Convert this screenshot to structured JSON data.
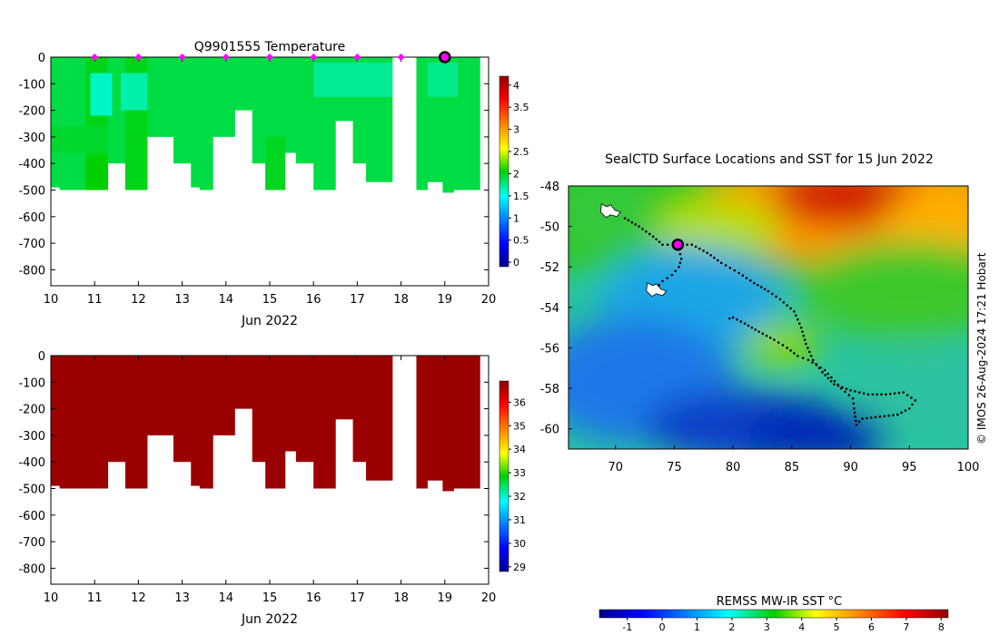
{
  "chart_data": [
    {
      "type": "heatmap",
      "title": "Q9901555  Temperature",
      "xlabel": "Jun 2022",
      "ylabel": "",
      "xlim": [
        10,
        20
      ],
      "ylim": [
        -860,
        0
      ],
      "xticks": [
        10,
        11,
        12,
        13,
        14,
        15,
        16,
        17,
        18,
        19,
        20
      ],
      "yticks": [
        0,
        -100,
        -200,
        -300,
        -400,
        -500,
        -600,
        -700,
        -800
      ],
      "colorbar": {
        "min": -0.1,
        "max": 4.2,
        "ticks": [
          0,
          0.5,
          1,
          1.5,
          2,
          2.5,
          3,
          3.5,
          4
        ]
      },
      "cast_days": [
        11,
        12,
        13,
        14,
        15,
        16,
        17,
        18
      ],
      "highlight_day": 19,
      "profiles": [
        {
          "x0": 10.0,
          "x1": 10.2,
          "bottom": -490,
          "t": 1.9
        },
        {
          "x0": 10.2,
          "x1": 10.8,
          "bottom": -500,
          "t": 1.9
        },
        {
          "x0": 10.8,
          "x1": 11.3,
          "bottom": -500,
          "t": 2.0
        },
        {
          "x0": 11.3,
          "x1": 11.7,
          "bottom": -400,
          "t": 1.9
        },
        {
          "x0": 11.7,
          "x1": 12.2,
          "bottom": -500,
          "t": 2.0
        },
        {
          "x0": 12.2,
          "x1": 12.8,
          "bottom": -300,
          "t": 1.9
        },
        {
          "x0": 12.8,
          "x1": 13.2,
          "bottom": -400,
          "t": 1.9
        },
        {
          "x0": 13.2,
          "x1": 13.4,
          "bottom": -490,
          "t": 1.9
        },
        {
          "x0": 13.4,
          "x1": 13.7,
          "bottom": -500,
          "t": 1.9
        },
        {
          "x0": 13.7,
          "x1": 14.2,
          "bottom": -300,
          "t": 1.9
        },
        {
          "x0": 14.2,
          "x1": 14.6,
          "bottom": -200,
          "t": 1.9
        },
        {
          "x0": 14.6,
          "x1": 14.9,
          "bottom": -400,
          "t": 1.9
        },
        {
          "x0": 14.9,
          "x1": 15.35,
          "bottom": -500,
          "t": 1.9
        },
        {
          "x0": 15.35,
          "x1": 15.6,
          "bottom": -360,
          "t": 1.9
        },
        {
          "x0": 15.6,
          "x1": 16.0,
          "bottom": -400,
          "t": 1.9
        },
        {
          "x0": 16.0,
          "x1": 16.5,
          "bottom": -500,
          "t": 1.9
        },
        {
          "x0": 16.5,
          "x1": 16.9,
          "bottom": -240,
          "t": 1.9
        },
        {
          "x0": 16.9,
          "x1": 17.2,
          "bottom": -400,
          "t": 1.9
        },
        {
          "x0": 17.2,
          "x1": 17.8,
          "bottom": -470,
          "t": 1.9
        },
        {
          "x0": 18.35,
          "x1": 18.6,
          "bottom": -500,
          "t": 1.9
        },
        {
          "x0": 18.6,
          "x1": 18.95,
          "bottom": -470,
          "t": 1.9
        },
        {
          "x0": 18.95,
          "x1": 19.2,
          "bottom": -510,
          "t": 1.9
        },
        {
          "x0": 19.2,
          "x1": 19.8,
          "bottom": -500,
          "t": 1.9
        }
      ],
      "warm_patches": [
        {
          "x0": 10.8,
          "x1": 11.3,
          "top": -370,
          "bottom": -500,
          "t": 2.05
        },
        {
          "x0": 11.7,
          "x1": 12.2,
          "top": -300,
          "bottom": -500,
          "t": 2.0
        },
        {
          "x0": 10.0,
          "x1": 11.3,
          "top": -260,
          "bottom": -360,
          "t": 1.95
        },
        {
          "x0": 14.9,
          "x1": 15.35,
          "top": -300,
          "bottom": -500,
          "t": 1.98
        }
      ],
      "cool_patches": [
        {
          "x0": 10.9,
          "x1": 11.4,
          "top": -60,
          "bottom": -220,
          "t": 1.55
        },
        {
          "x0": 11.6,
          "x1": 12.2,
          "top": -60,
          "bottom": -200,
          "t": 1.62
        },
        {
          "x0": 16.0,
          "x1": 17.8,
          "top": -20,
          "bottom": -150,
          "t": 1.7
        },
        {
          "x0": 18.6,
          "x1": 19.3,
          "top": -20,
          "bottom": -150,
          "t": 1.72
        }
      ]
    },
    {
      "type": "heatmap",
      "title": "",
      "xlabel": "Jun 2022",
      "ylabel": "",
      "xlim": [
        10,
        20
      ],
      "ylim": [
        -860,
        0
      ],
      "xticks": [
        10,
        11,
        12,
        13,
        14,
        15,
        16,
        17,
        18,
        19,
        20
      ],
      "yticks": [
        0,
        -100,
        -200,
        -300,
        -400,
        -500,
        -600,
        -700,
        -800
      ],
      "colorbar": {
        "min": 28.8,
        "max": 36.9,
        "ticks": [
          29,
          30,
          31,
          32,
          33,
          34,
          35,
          36
        ]
      },
      "value": 36.8
    },
    {
      "type": "heatmap",
      "title": "SealCTD Surface Locations and SST for 15 Jun 2022",
      "xlabel": "",
      "ylabel": "",
      "xlim": [
        66,
        100
      ],
      "ylim": [
        -61,
        -48
      ],
      "xticks": [
        70,
        75,
        80,
        85,
        90,
        95,
        100
      ],
      "yticks": [
        -48,
        -50,
        -52,
        -54,
        -56,
        -58,
        -60
      ],
      "colorbar": {
        "title": "REMSS MW-IR SST °C",
        "min": -1.8,
        "max": 8.2,
        "ticks": [
          -1,
          0,
          1,
          2,
          3,
          4,
          5,
          6,
          7,
          8
        ]
      },
      "credit": "© IMOS 26-Aug-2024 17:21 Hobart",
      "track": [
        [
          70.8,
          -49.6
        ],
        [
          72.0,
          -50.0
        ],
        [
          73.2,
          -50.5
        ],
        [
          74.0,
          -50.9
        ],
        [
          75.3,
          -50.9
        ],
        [
          76.5,
          -50.9
        ],
        [
          77.8,
          -51.3
        ],
        [
          79.0,
          -51.8
        ],
        [
          80.5,
          -52.3
        ],
        [
          81.8,
          -52.8
        ],
        [
          83.0,
          -53.2
        ],
        [
          84.0,
          -53.6
        ],
        [
          85.2,
          -54.2
        ],
        [
          85.8,
          -55.0
        ],
        [
          86.2,
          -55.8
        ],
        [
          86.8,
          -56.6
        ],
        [
          87.6,
          -57.2
        ],
        [
          88.6,
          -57.8
        ],
        [
          90.0,
          -58.1
        ],
        [
          91.5,
          -58.3
        ],
        [
          93.0,
          -58.3
        ],
        [
          94.5,
          -58.2
        ],
        [
          95.5,
          -58.6
        ],
        [
          95.0,
          -59.0
        ],
        [
          94.0,
          -59.3
        ],
        [
          92.5,
          -59.4
        ],
        [
          91.0,
          -59.5
        ],
        [
          90.5,
          -59.8
        ],
        [
          90.3,
          -59.0
        ],
        [
          90.2,
          -58.5
        ],
        [
          89.2,
          -58.0
        ],
        [
          87.8,
          -57.1
        ],
        [
          86.4,
          -56.6
        ],
        [
          85.5,
          -56.4
        ],
        [
          84.6,
          -56.0
        ],
        [
          83.5,
          -55.6
        ],
        [
          82.2,
          -55.2
        ],
        [
          81.0,
          -54.8
        ],
        [
          80.0,
          -54.5
        ],
        [
          79.4,
          -54.6
        ]
      ],
      "track_branch": [
        [
          75.3,
          -50.9
        ],
        [
          75.6,
          -51.6
        ],
        [
          75.4,
          -52.0
        ],
        [
          74.8,
          -52.4
        ],
        [
          74.0,
          -52.7
        ],
        [
          73.4,
          -53.1
        ]
      ],
      "current_position": [
        75.3,
        -50.9
      ],
      "islands": [
        [
          69.5,
          -49.2
        ],
        [
          73.4,
          -53.1
        ]
      ]
    }
  ]
}
